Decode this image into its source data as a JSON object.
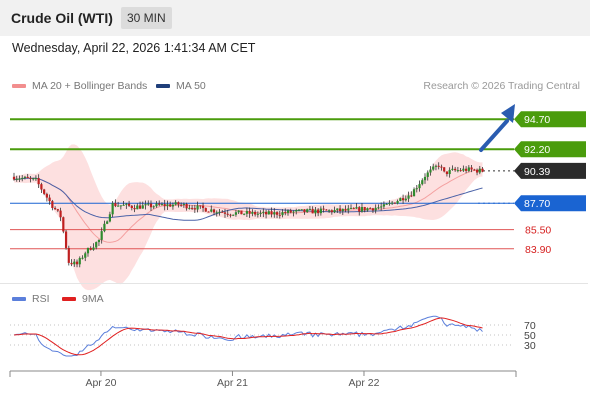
{
  "header": {
    "title": "Crude Oil (WTI)",
    "timeframe": "30 MIN"
  },
  "datetime": "Wednesday, April 22, 2026 1:41:34 AM CET",
  "legend": {
    "bollinger": {
      "label": "MA 20 + Bollinger Bands",
      "color": "#f28e8e"
    },
    "ma50": {
      "label": "MA 50",
      "color": "#1f3f7a"
    },
    "credit": "Research © 2026 Trading Central"
  },
  "rsi_legend": {
    "rsi": {
      "label": "RSI",
      "color": "#5b7fdb"
    },
    "ma9": {
      "label": "9MA",
      "color": "#e02020"
    }
  },
  "chart_data": {
    "type": "candlestick",
    "price_range": [
      81.3,
      96.3
    ],
    "x_ticks": [
      {
        "label": "Apr 20",
        "bar": 31
      },
      {
        "label": "Apr 21",
        "bar": 79
      },
      {
        "label": "Apr 22",
        "bar": 127
      }
    ],
    "levels": [
      {
        "value": 94.7,
        "label": "94.70",
        "kind": "resistance"
      },
      {
        "value": 92.2,
        "label": "92.20",
        "kind": "resistance"
      },
      {
        "value": 90.39,
        "label": "90.39",
        "kind": "last"
      },
      {
        "value": 87.7,
        "label": "87.70",
        "kind": "pivot"
      },
      {
        "value": 85.5,
        "label": "85.50",
        "kind": "support"
      },
      {
        "value": 83.9,
        "label": "83.90",
        "kind": "support"
      }
    ],
    "colors": {
      "up": "#2e8b2e",
      "down": "#bf2020",
      "resistance": "#4a9c0c",
      "pivot": "#1a64d2",
      "support": "#e05555",
      "last": "#333333",
      "arrow": "#2a5cb0"
    },
    "rsi": {
      "levels": [
        70,
        50,
        30
      ],
      "range": [
        0,
        100
      ]
    }
  }
}
